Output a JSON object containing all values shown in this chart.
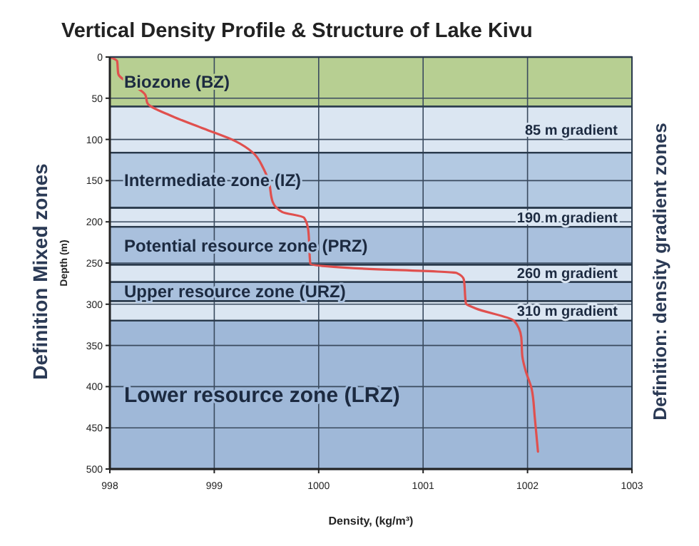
{
  "chart_data": {
    "type": "line",
    "title": "Vertical Density Profile & Structure of Lake Kivu",
    "xlabel": "Density, (kg/m³)",
    "ylabel": "Depth (m)",
    "annotations": [
      "Definition Mixed zones",
      "Definition: density gradient zones"
    ],
    "series": [
      {
        "color": "#e0504e",
        "x": [
          998.0,
          998.07,
          998.08,
          998.34,
          998.36,
          998.6,
          998.9,
          999.2,
          999.37,
          999.47,
          999.52,
          999.56,
          999.65,
          999.86,
          999.9,
          999.92,
          1000.3,
          1001.32,
          1001.39,
          1001.41,
          1001.5,
          1001.87,
          1001.94,
          1001.95,
          1001.98,
          1002.04,
          1002.07,
          1002.1
        ],
        "values": [
          0,
          5,
          20,
          46,
          56,
          72,
          87,
          102,
          116,
          135,
          150,
          176,
          188,
          195,
          210,
          251,
          256,
          262,
          270,
          299,
          305,
          320,
          340,
          363,
          380,
          403,
          438,
          479
        ]
      }
    ],
    "xlim": [
      998,
      1003
    ],
    "ylim": [
      500,
      0
    ],
    "xticks": [
      998,
      999,
      1000,
      1001,
      1002,
      1003
    ],
    "yticks": [
      0,
      50,
      100,
      150,
      200,
      250,
      300,
      350,
      400,
      450,
      500
    ],
    "grid": true,
    "bands": [
      {
        "axis": "y",
        "from": 0,
        "to": 60,
        "label": "Biozone (BZ)",
        "color": "#b7cf92"
      },
      {
        "axis": "y",
        "from": 60,
        "to": 116,
        "label": "85 m gradient",
        "color": "#dbe6f2"
      },
      {
        "axis": "y",
        "from": 116,
        "to": 183,
        "label": "Intermediate zone (IZ)",
        "color": "#b3c9e2"
      },
      {
        "axis": "y",
        "from": 183,
        "to": 206,
        "label": "190 m gradient",
        "color": "#dbe6f2"
      },
      {
        "axis": "y",
        "from": 206,
        "to": 252,
        "label": "Potential resource zone (PRZ)",
        "color": "#a9c0dd"
      },
      {
        "axis": "y",
        "from": 252,
        "to": 273,
        "label": "260 m gradient",
        "color": "#dbe6f2"
      },
      {
        "axis": "y",
        "from": 273,
        "to": 296,
        "label": "Upper resource zone (URZ)",
        "color": "#a9c0dd"
      },
      {
        "axis": "y",
        "from": 296,
        "to": 320,
        "label": "310 m gradient",
        "color": "#dbe6f2"
      },
      {
        "axis": "y",
        "from": 320,
        "to": 500,
        "label": "Lower resource zone (LRZ)",
        "color": "#9fb8d8"
      }
    ]
  }
}
